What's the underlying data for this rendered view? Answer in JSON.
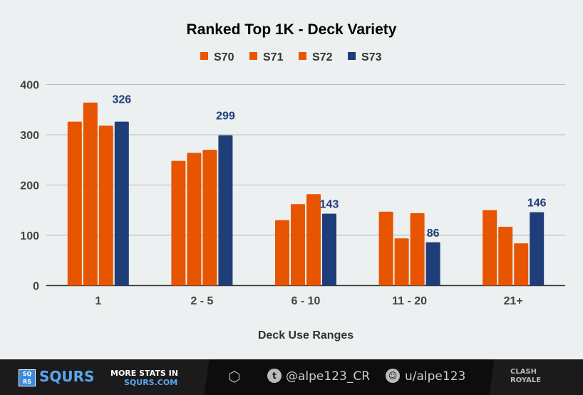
{
  "chart_data": {
    "type": "bar",
    "title": "Ranked Top 1K - Deck Variety",
    "xlabel": "Deck Use Ranges",
    "ylabel": "",
    "ylim": [
      0,
      400
    ],
    "yticks": [
      "0",
      "100",
      "200",
      "300",
      "400"
    ],
    "grid": true,
    "legend": "top",
    "categories": [
      "1",
      "2 - 5",
      "6 - 10",
      "11 - 20",
      "21+"
    ],
    "series": [
      {
        "name": "S70",
        "color": "#e85500",
        "values": [
          326,
          248,
          130,
          147,
          150
        ]
      },
      {
        "name": "S71",
        "color": "#e85500",
        "values": [
          364,
          264,
          162,
          94,
          117
        ]
      },
      {
        "name": "S72",
        "color": "#e85500",
        "values": [
          318,
          270,
          182,
          144,
          84
        ]
      },
      {
        "name": "S73",
        "color": "#1f3d78",
        "values": [
          326,
          299,
          143,
          86,
          146
        ],
        "data_labels": [
          "326",
          "299",
          "143",
          "86",
          "146"
        ]
      }
    ]
  },
  "footer": {
    "brand": "SQURS",
    "logo_letters": "SQRS",
    "more_stats": "MORE STATS IN",
    "site": "SQURS.COM",
    "twitter": "@alpe123_CR",
    "reddit": "u/alpe123",
    "game_logo": "CLASH ROYALE"
  }
}
